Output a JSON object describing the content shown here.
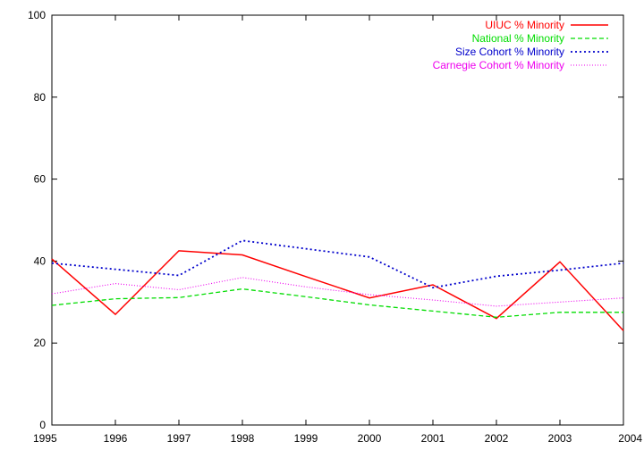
{
  "chart_data": {
    "type": "line",
    "x": [
      1995,
      1996,
      1997,
      1998,
      1999,
      2000,
      2001,
      2002,
      2003,
      2004
    ],
    "xlim": [
      1995,
      2004
    ],
    "ylim": [
      0,
      100
    ],
    "yticks": [
      0,
      20,
      40,
      60,
      80,
      100
    ],
    "xticks": [
      1995,
      1996,
      1997,
      1998,
      1999,
      2000,
      2001,
      2002,
      2003,
      2004
    ],
    "grid": false,
    "legend_position": "top-right",
    "series": [
      {
        "name": "UIUC % Minority",
        "color": "#ff0000",
        "dash": "solid",
        "values": [
          40.5,
          27.0,
          42.5,
          41.5,
          36.2,
          31.0,
          34.2,
          26.0,
          39.8,
          23.0
        ]
      },
      {
        "name": "National % Minority",
        "color": "#00dd00",
        "dash": "dashed",
        "values": [
          29.2,
          30.8,
          31.1,
          33.2,
          31.3,
          29.3,
          27.8,
          26.3,
          27.5,
          27.5
        ]
      },
      {
        "name": "Size Cohort % Minority",
        "color": "#0000cc",
        "dash": "dotted",
        "values": [
          39.5,
          38.0,
          36.5,
          45.0,
          43.0,
          41.0,
          33.5,
          36.3,
          37.8,
          39.5
        ]
      },
      {
        "name": "Carnegie Cohort % Minority",
        "color": "#ee00ee",
        "dash": "fine-dotted",
        "values": [
          32.0,
          34.5,
          33.0,
          36.0,
          33.7,
          31.8,
          30.5,
          29.0,
          30.0,
          31.0
        ]
      }
    ]
  }
}
